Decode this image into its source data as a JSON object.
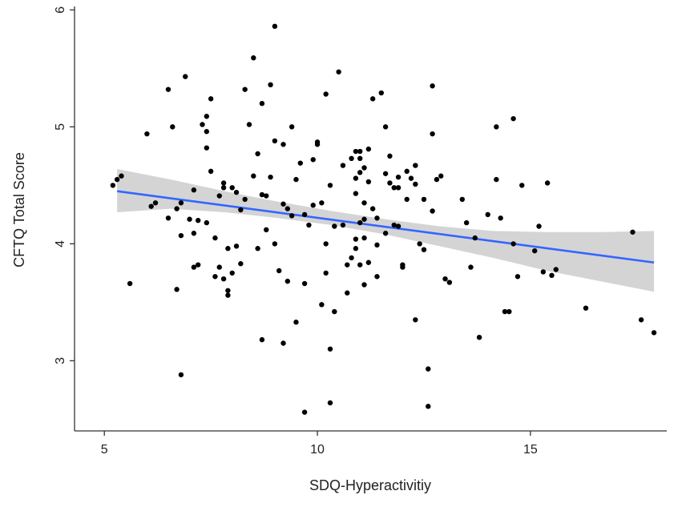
{
  "chart_data": {
    "type": "scatter",
    "xlabel": "SDQ-Hyperactivitiy",
    "ylabel": "CFTQ Total Score",
    "xlim": [
      4.3,
      18.2
    ],
    "ylim": [
      2.4,
      6.03
    ],
    "x_ticks": [
      5,
      10,
      15
    ],
    "y_ticks": [
      3,
      4,
      5,
      6
    ],
    "x_tick_labels": [
      "5",
      "10",
      "15"
    ],
    "y_tick_labels": [
      "3",
      "4",
      "5",
      "6"
    ],
    "grid": false,
    "legend": "none",
    "colors": {
      "points": "#000000",
      "fit_line": "#3366ff",
      "ci_band": "#d4d4d4",
      "axis": "#333333"
    },
    "fit_line": {
      "x": [
        5.3,
        17.9
      ],
      "y": [
        4.45,
        3.84
      ]
    },
    "confidence_band": {
      "x": [
        5.3,
        6.56,
        7.82,
        9.08,
        10.34,
        11.6,
        12.86,
        14.12,
        15.38,
        16.64,
        17.9
      ],
      "lower": [
        4.27,
        4.3,
        4.27,
        4.22,
        4.16,
        4.08,
        3.98,
        3.88,
        3.77,
        3.68,
        3.59
      ],
      "upper": [
        4.64,
        4.55,
        4.45,
        4.36,
        4.28,
        4.21,
        4.15,
        4.11,
        4.1,
        4.1,
        4.11
      ]
    },
    "series": [
      {
        "points": [
          [
            5.2,
            4.5
          ],
          [
            5.3,
            4.55
          ],
          [
            5.4,
            4.58
          ],
          [
            5.6,
            3.66
          ],
          [
            6.0,
            4.94
          ],
          [
            6.1,
            4.32
          ],
          [
            6.2,
            4.35
          ],
          [
            6.5,
            4.22
          ],
          [
            6.5,
            5.32
          ],
          [
            6.6,
            5.0
          ],
          [
            6.7,
            3.61
          ],
          [
            6.7,
            4.3
          ],
          [
            6.8,
            4.35
          ],
          [
            6.8,
            4.07
          ],
          [
            6.8,
            2.88
          ],
          [
            6.9,
            5.43
          ],
          [
            7.0,
            4.21
          ],
          [
            7.1,
            4.46
          ],
          [
            7.1,
            4.09
          ],
          [
            7.1,
            3.8
          ],
          [
            7.2,
            3.82
          ],
          [
            7.2,
            4.2
          ],
          [
            7.3,
            5.02
          ],
          [
            7.4,
            4.18
          ],
          [
            7.4,
            4.82
          ],
          [
            7.4,
            4.96
          ],
          [
            7.4,
            5.09
          ],
          [
            7.5,
            5.24
          ],
          [
            7.5,
            4.62
          ],
          [
            7.6,
            3.72
          ],
          [
            7.6,
            4.05
          ],
          [
            7.7,
            4.41
          ],
          [
            7.7,
            3.8
          ],
          [
            7.8,
            3.7
          ],
          [
            7.8,
            4.52
          ],
          [
            7.8,
            4.48
          ],
          [
            7.9,
            3.56
          ],
          [
            7.9,
            3.6
          ],
          [
            7.9,
            3.96
          ],
          [
            8.0,
            4.48
          ],
          [
            8.0,
            3.75
          ],
          [
            8.1,
            3.98
          ],
          [
            8.1,
            4.44
          ],
          [
            8.2,
            4.29
          ],
          [
            8.2,
            3.83
          ],
          [
            8.3,
            5.32
          ],
          [
            8.3,
            4.38
          ],
          [
            8.4,
            5.02
          ],
          [
            8.5,
            5.59
          ],
          [
            8.5,
            4.58
          ],
          [
            8.6,
            4.77
          ],
          [
            8.6,
            3.96
          ],
          [
            8.7,
            5.2
          ],
          [
            8.7,
            4.42
          ],
          [
            8.7,
            3.18
          ],
          [
            8.8,
            4.41
          ],
          [
            8.8,
            4.12
          ],
          [
            8.9,
            5.36
          ],
          [
            8.9,
            4.57
          ],
          [
            9.0,
            5.86
          ],
          [
            9.0,
            4.88
          ],
          [
            9.0,
            4.0
          ],
          [
            9.1,
            3.77
          ],
          [
            9.2,
            4.85
          ],
          [
            9.2,
            4.34
          ],
          [
            9.2,
            3.15
          ],
          [
            9.3,
            4.3
          ],
          [
            9.3,
            3.68
          ],
          [
            9.4,
            5.0
          ],
          [
            9.4,
            4.24
          ],
          [
            9.5,
            4.55
          ],
          [
            9.5,
            3.33
          ],
          [
            9.6,
            4.69
          ],
          [
            9.7,
            4.25
          ],
          [
            9.7,
            3.66
          ],
          [
            9.7,
            2.56
          ],
          [
            9.8,
            4.16
          ],
          [
            9.9,
            4.72
          ],
          [
            9.9,
            4.33
          ],
          [
            10.0,
            4.87
          ],
          [
            10.0,
            4.85
          ],
          [
            10.1,
            4.35
          ],
          [
            10.1,
            3.48
          ],
          [
            10.2,
            5.28
          ],
          [
            10.2,
            4.0
          ],
          [
            10.2,
            3.75
          ],
          [
            10.3,
            4.5
          ],
          [
            10.3,
            3.1
          ],
          [
            10.3,
            2.64
          ],
          [
            10.4,
            4.15
          ],
          [
            10.4,
            3.42
          ],
          [
            10.5,
            5.47
          ],
          [
            10.6,
            4.67
          ],
          [
            10.6,
            4.16
          ],
          [
            10.7,
            3.82
          ],
          [
            10.7,
            3.58
          ],
          [
            10.8,
            4.73
          ],
          [
            10.8,
            3.88
          ],
          [
            10.9,
            4.79
          ],
          [
            10.9,
            4.56
          ],
          [
            10.9,
            4.43
          ],
          [
            10.9,
            4.04
          ],
          [
            10.9,
            3.96
          ],
          [
            11.0,
            4.79
          ],
          [
            11.0,
            4.73
          ],
          [
            11.0,
            4.61
          ],
          [
            11.0,
            4.18
          ],
          [
            11.0,
            3.82
          ],
          [
            11.1,
            4.65
          ],
          [
            11.1,
            4.35
          ],
          [
            11.1,
            4.21
          ],
          [
            11.1,
            4.05
          ],
          [
            11.1,
            3.65
          ],
          [
            11.2,
            4.81
          ],
          [
            11.2,
            4.53
          ],
          [
            11.2,
            3.84
          ],
          [
            11.3,
            5.24
          ],
          [
            11.3,
            4.3
          ],
          [
            11.4,
            4.22
          ],
          [
            11.4,
            3.99
          ],
          [
            11.4,
            3.72
          ],
          [
            11.5,
            5.29
          ],
          [
            11.6,
            5.0
          ],
          [
            11.6,
            4.6
          ],
          [
            11.6,
            4.09
          ],
          [
            11.7,
            4.75
          ],
          [
            11.7,
            4.52
          ],
          [
            11.8,
            4.48
          ],
          [
            11.8,
            4.16
          ],
          [
            11.9,
            4.57
          ],
          [
            11.9,
            4.48
          ],
          [
            11.9,
            4.15
          ],
          [
            12.0,
            3.8
          ],
          [
            12.0,
            3.82
          ],
          [
            12.1,
            4.62
          ],
          [
            12.1,
            4.38
          ],
          [
            12.2,
            4.56
          ],
          [
            12.3,
            4.67
          ],
          [
            12.3,
            4.51
          ],
          [
            12.3,
            3.35
          ],
          [
            12.4,
            4.0
          ],
          [
            12.5,
            4.38
          ],
          [
            12.5,
            3.95
          ],
          [
            12.6,
            2.93
          ],
          [
            12.6,
            2.61
          ],
          [
            12.7,
            5.35
          ],
          [
            12.7,
            4.94
          ],
          [
            12.7,
            4.28
          ],
          [
            12.8,
            4.55
          ],
          [
            12.9,
            4.58
          ],
          [
            13.0,
            3.7
          ],
          [
            13.1,
            3.67
          ],
          [
            13.4,
            4.38
          ],
          [
            13.5,
            4.18
          ],
          [
            13.6,
            3.8
          ],
          [
            13.7,
            4.05
          ],
          [
            13.8,
            3.2
          ],
          [
            14.0,
            4.25
          ],
          [
            14.2,
            5.0
          ],
          [
            14.2,
            4.55
          ],
          [
            14.3,
            4.22
          ],
          [
            14.4,
            3.42
          ],
          [
            14.5,
            3.42
          ],
          [
            14.6,
            5.07
          ],
          [
            14.6,
            4.0
          ],
          [
            14.7,
            3.72
          ],
          [
            14.8,
            4.5
          ],
          [
            15.1,
            3.94
          ],
          [
            15.2,
            4.15
          ],
          [
            15.3,
            3.76
          ],
          [
            15.4,
            4.52
          ],
          [
            15.5,
            3.73
          ],
          [
            15.6,
            3.78
          ],
          [
            16.3,
            3.45
          ],
          [
            17.4,
            4.1
          ],
          [
            17.6,
            3.35
          ],
          [
            17.9,
            3.24
          ]
        ]
      }
    ]
  }
}
